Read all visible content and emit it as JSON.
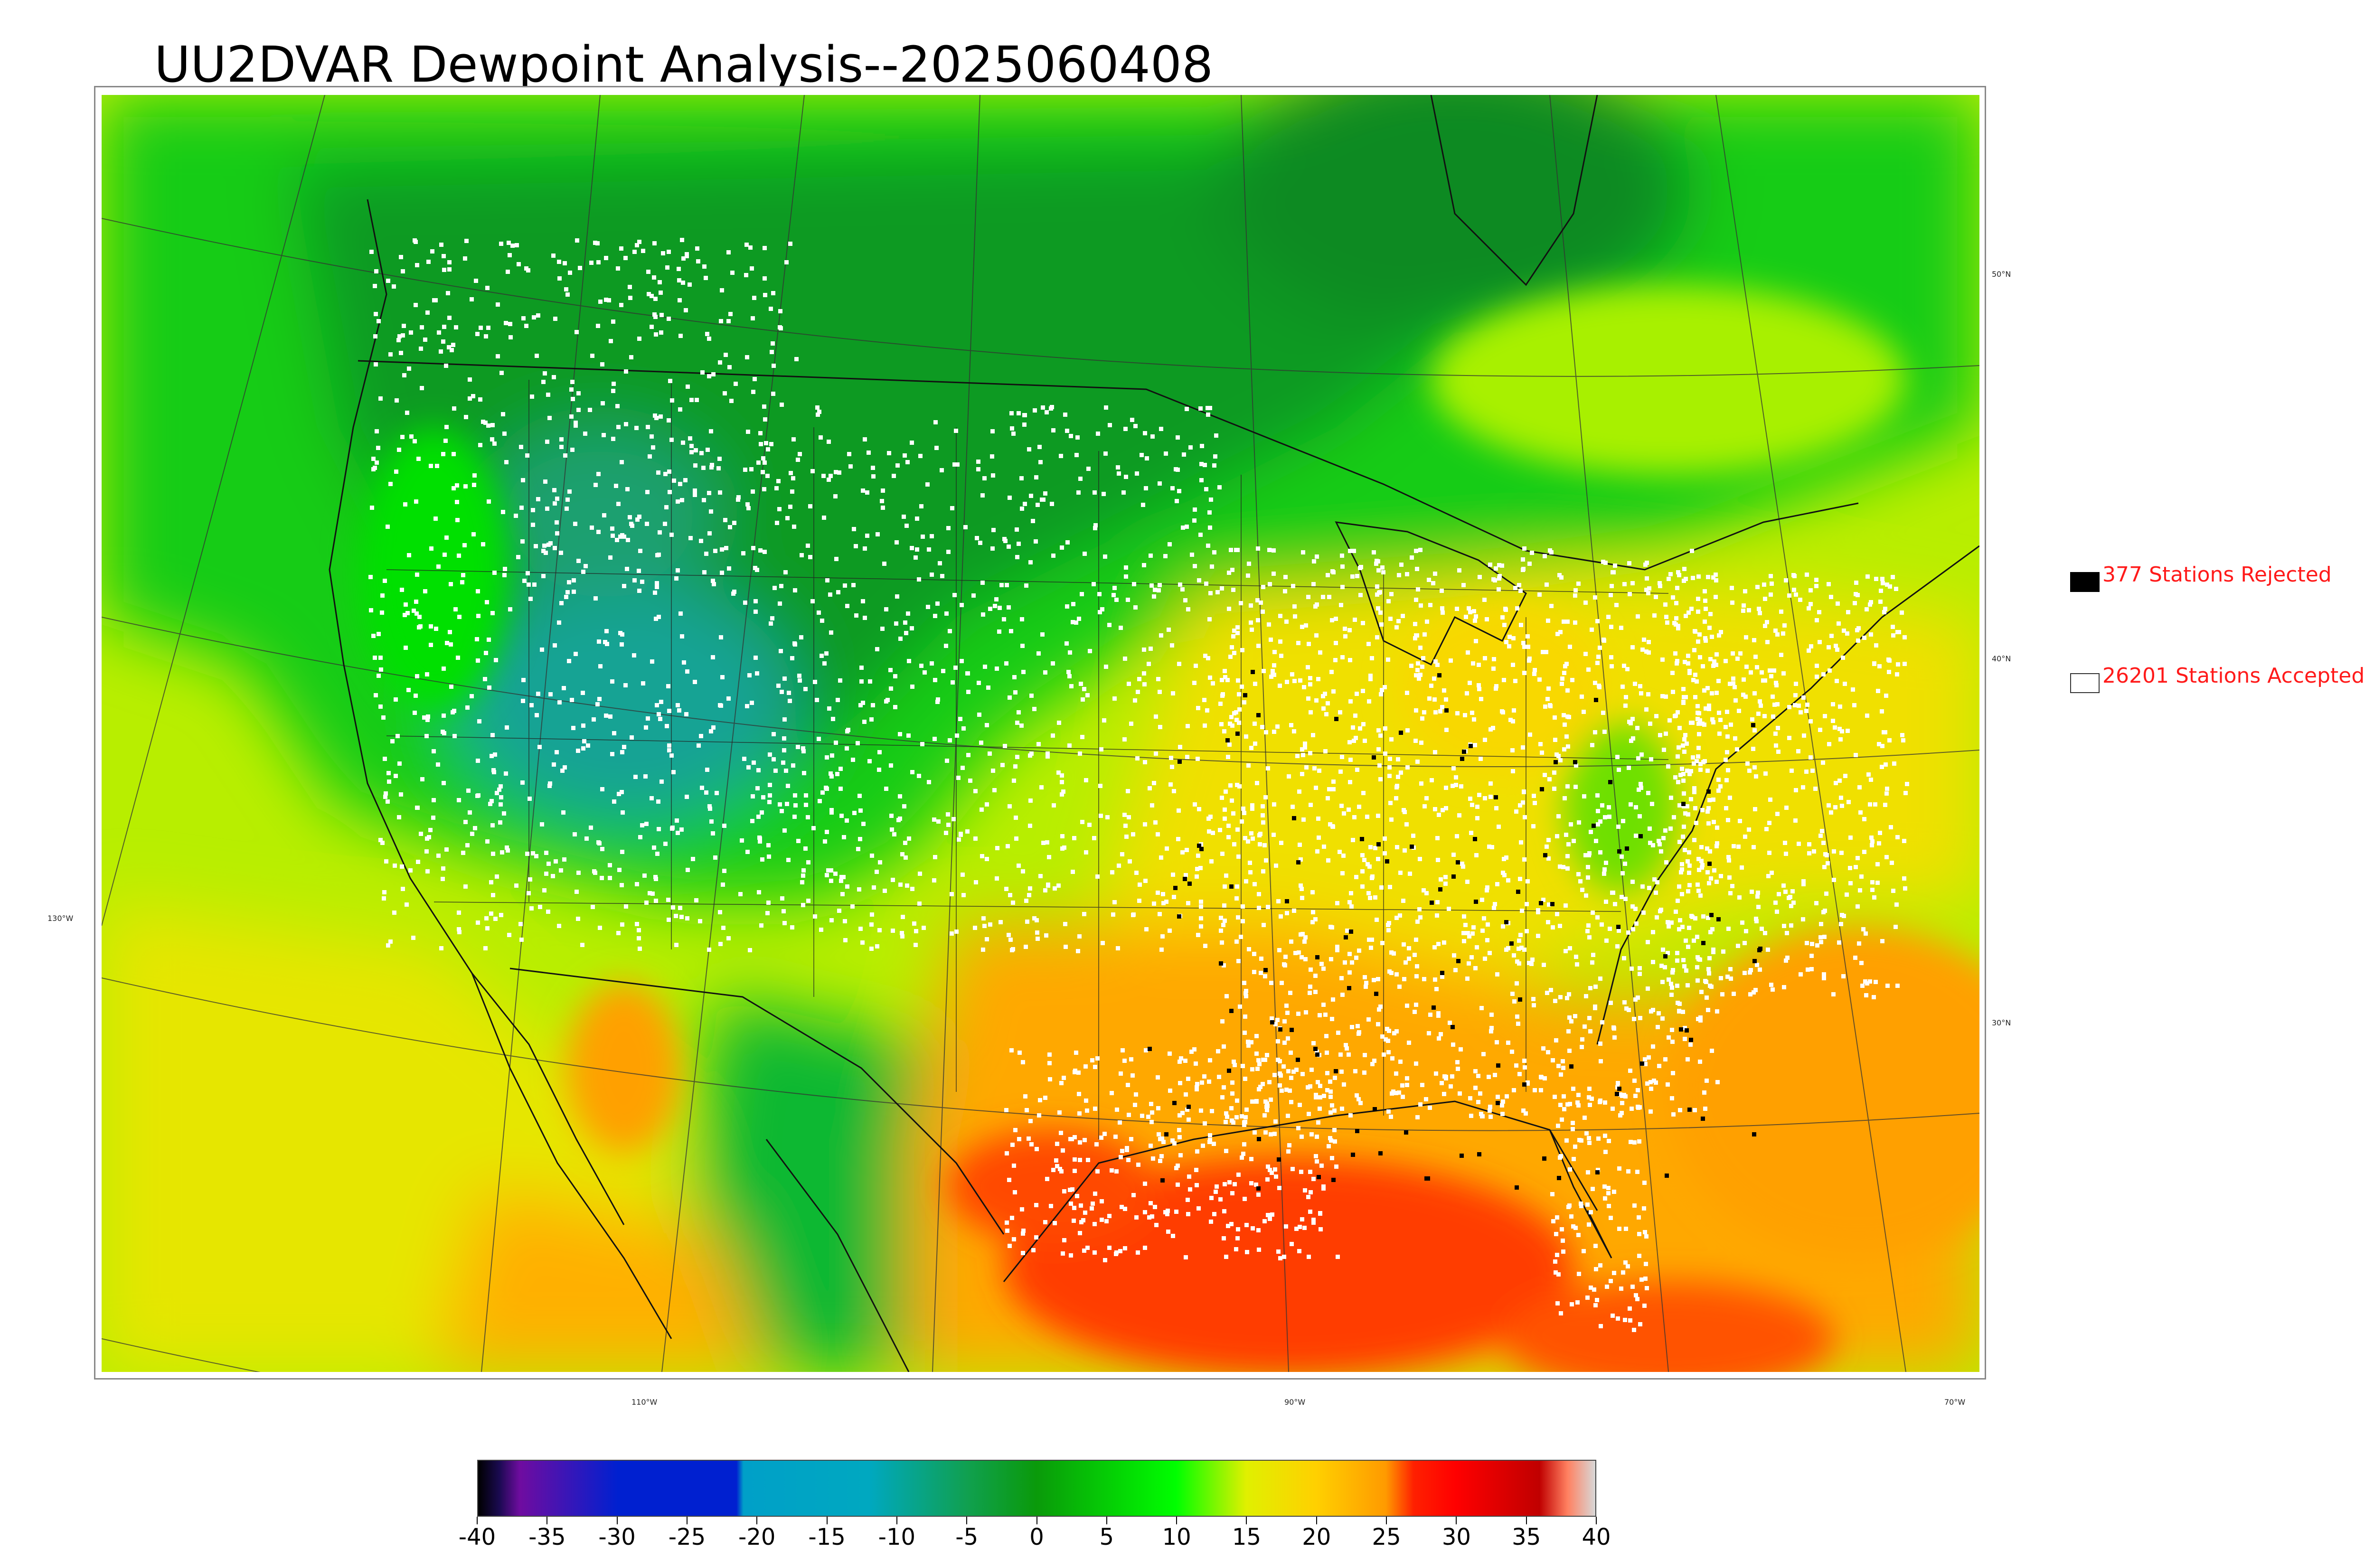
{
  "title": "UU2DVAR Dewpoint Analysis--2025060408",
  "map": {
    "lon_labels": [
      "130°W",
      "110°W",
      "90°W",
      "70°W"
    ],
    "lat_labels": [
      "50°N",
      "40°N",
      "30°N"
    ],
    "colors": {
      "land_dry_green": "#1faa1f",
      "bright_green": "#00e600",
      "teal": "#13a39a",
      "yellow_green": "#b8ee00",
      "yellow": "#f0e000",
      "orange": "#ffa200",
      "red_orange": "#ff3a00",
      "accepted_station": "#ffffff",
      "rejected_station": "#000000"
    }
  },
  "legend": {
    "rejected_label": "377 Stations Rejected",
    "accepted_label": "26201 Stations Accepted"
  },
  "colorbar": {
    "ticks": [
      "-40",
      "-35",
      "-30",
      "-25",
      "-20",
      "-15",
      "-10",
      "-5",
      "0",
      "5",
      "10",
      "15",
      "20",
      "25",
      "30",
      "35",
      "40"
    ],
    "range": [
      -40,
      40
    ],
    "stops": [
      {
        "v": -40,
        "c": "#000000"
      },
      {
        "v": -38.5,
        "c": "#1a0a50"
      },
      {
        "v": -37,
        "c": "#6f0ca0"
      },
      {
        "v": -30,
        "c": "#0020d0"
      },
      {
        "v": -21.5,
        "c": "#0020d0"
      },
      {
        "v": -21,
        "c": "#00a0c8"
      },
      {
        "v": -12,
        "c": "#00a8c0"
      },
      {
        "v": -5,
        "c": "#10a050"
      },
      {
        "v": 0,
        "c": "#0a9a0a"
      },
      {
        "v": 10,
        "c": "#00ff00"
      },
      {
        "v": 15,
        "c": "#e0f000"
      },
      {
        "v": 20,
        "c": "#ffd000"
      },
      {
        "v": 25,
        "c": "#ff9a00"
      },
      {
        "v": 27,
        "c": "#ff2000"
      },
      {
        "v": 30,
        "c": "#ff0000"
      },
      {
        "v": 36,
        "c": "#c00000"
      },
      {
        "v": 38,
        "c": "#ff8060"
      },
      {
        "v": 40,
        "c": "#d8d8d8"
      }
    ]
  }
}
